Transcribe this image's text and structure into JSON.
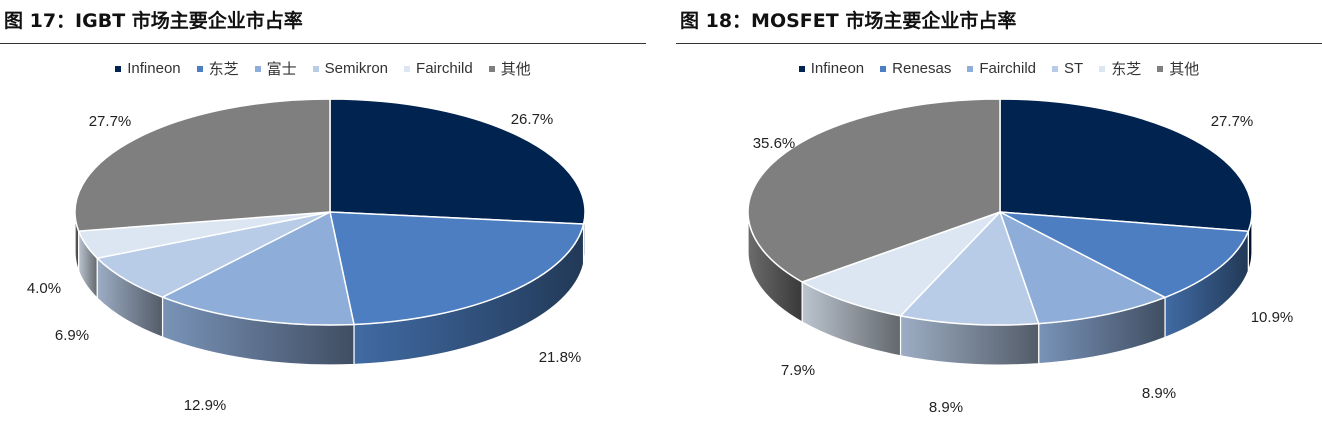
{
  "chart_data": [
    {
      "type": "pie",
      "title": "图 17：IGBT 市场主要企业市占率",
      "legend_position": "top",
      "start_angle_deg": -90,
      "slices": [
        {
          "name": "Infineon",
          "value": 26.7,
          "label": "26.7%",
          "color": "#00244F"
        },
        {
          "name": "东芝",
          "value": 21.8,
          "label": "21.8%",
          "color": "#4C7EC1"
        },
        {
          "name": "富士",
          "value": 12.9,
          "label": "12.9%",
          "color": "#8EADD9"
        },
        {
          "name": "Semikron",
          "value": 6.9,
          "label": "6.9%",
          "color": "#B9CCE7"
        },
        {
          "name": "Fairchild",
          "value": 4.0,
          "label": "4.0%",
          "color": "#DCE6F3"
        },
        {
          "name": "其他",
          "value": 27.7,
          "label": "27.7%",
          "color": "#7F7F7F"
        }
      ]
    },
    {
      "type": "pie",
      "title": "图 18：MOSFET 市场主要企业市占率",
      "legend_position": "top",
      "start_angle_deg": -90,
      "slices": [
        {
          "name": "Infineon",
          "value": 27.7,
          "label": "27.7%",
          "color": "#00244F"
        },
        {
          "name": "Renesas",
          "value": 10.9,
          "label": "10.9%",
          "color": "#4C7EC1"
        },
        {
          "name": "Fairchild",
          "value": 8.9,
          "label": "8.9%",
          "color": "#8EADD9"
        },
        {
          "name": "ST",
          "value": 8.9,
          "label": "8.9%",
          "color": "#B9CCE7"
        },
        {
          "name": "东芝",
          "value": 7.9,
          "label": "7.9%",
          "color": "#DCE6F3"
        },
        {
          "name": "其他",
          "value": 35.6,
          "label": "35.6%",
          "color": "#7F7F7F"
        }
      ]
    }
  ]
}
